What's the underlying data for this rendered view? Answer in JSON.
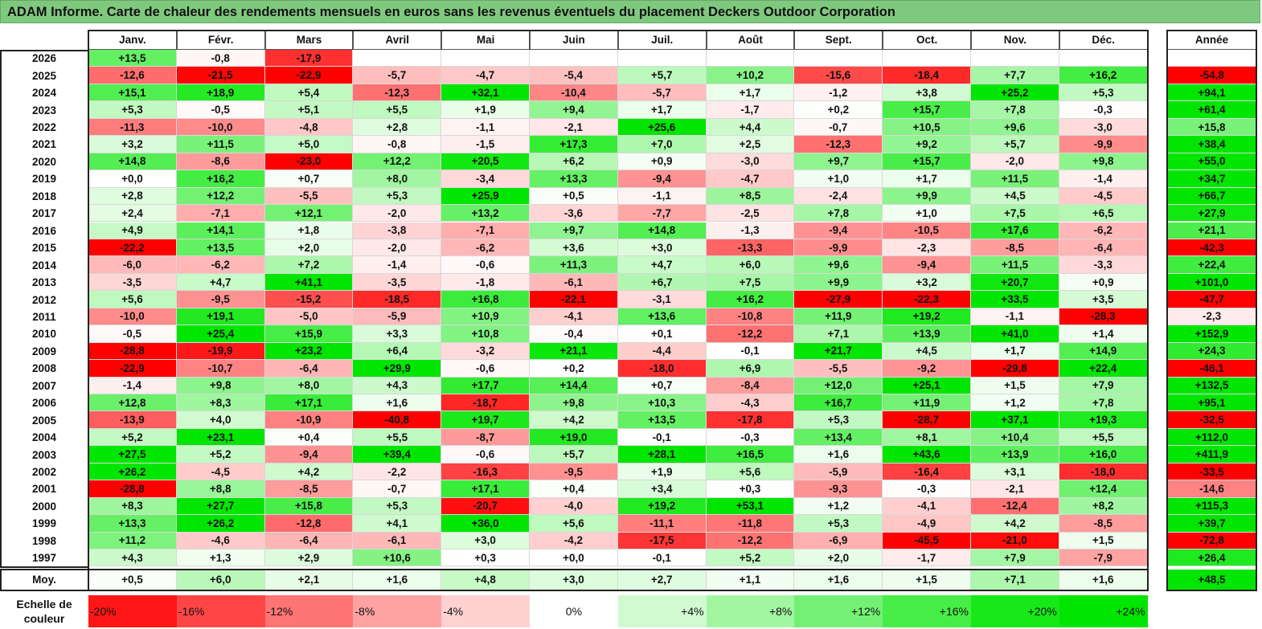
{
  "title": "ADAM Informe. Carte de chaleur des rendements mensuels en euros sans les revenus éventuels du placement Deckers Outdoor Corporation",
  "chart_data": {
    "type": "heatmap",
    "title": "ADAM Informe. Carte de chaleur des rendements mensuels en euros sans les revenus éventuels du placement Deckers Outdoor Corporation",
    "columns": [
      "Janv.",
      "Févr.",
      "Mars",
      "Avril",
      "Mai",
      "Juin",
      "Juil.",
      "Août",
      "Sept.",
      "Oct.",
      "Nov.",
      "Déc."
    ],
    "year_column_label": "Année",
    "rows": [
      {
        "year": "2026",
        "values": [
          "+13,5",
          "-0,8",
          "-17,9",
          "",
          "",
          "",
          "",
          "",
          "",
          "",
          "",
          ""
        ],
        "annual": ""
      },
      {
        "year": "2025",
        "values": [
          "-12,6",
          "-21,5",
          "-22,9",
          "-5,7",
          "-4,7",
          "-5,4",
          "+5,7",
          "+10,2",
          "-15,6",
          "-18,4",
          "+7,7",
          "+16,2"
        ],
        "annual": "-54,8"
      },
      {
        "year": "2024",
        "values": [
          "+15,1",
          "+18,9",
          "+5,4",
          "-12,3",
          "+32,1",
          "-10,4",
          "-5,7",
          "+1,7",
          "-1,2",
          "+3,8",
          "+25,2",
          "+5,3"
        ],
        "annual": "+94,1"
      },
      {
        "year": "2023",
        "values": [
          "+5,3",
          "-0,5",
          "+5,1",
          "+5,5",
          "+1,9",
          "+9,4",
          "+1,7",
          "-1,7",
          "+0,2",
          "+15,7",
          "+7,8",
          "-0,3"
        ],
        "annual": "+61,4"
      },
      {
        "year": "2022",
        "values": [
          "-11,3",
          "-10,0",
          "-4,8",
          "+2,8",
          "-1,1",
          "-2,1",
          "+25,6",
          "+4,4",
          "-0,7",
          "+10,5",
          "+9,6",
          "-3,0"
        ],
        "annual": "+15,8"
      },
      {
        "year": "2021",
        "values": [
          "+3,2",
          "+11,5",
          "+5,0",
          "-0,8",
          "-1,5",
          "+17,3",
          "+7,0",
          "+2,5",
          "-12,3",
          "+9,2",
          "+5,7",
          "-9,9"
        ],
        "annual": "+38,4"
      },
      {
        "year": "2020",
        "values": [
          "+14,8",
          "-8,6",
          "-23,0",
          "+12,2",
          "+20,5",
          "+6,2",
          "+0,9",
          "-3,0",
          "+9,7",
          "+15,7",
          "-2,0",
          "+9,8"
        ],
        "annual": "+55,0"
      },
      {
        "year": "2019",
        "values": [
          "+0,0",
          "+16,2",
          "+0,7",
          "+8,0",
          "-3,4",
          "+13,3",
          "-9,4",
          "-4,7",
          "+1,0",
          "+1,7",
          "+11,5",
          "-1,4"
        ],
        "annual": "+34,7"
      },
      {
        "year": "2018",
        "values": [
          "+2,8",
          "+12,2",
          "-5,5",
          "+5,3",
          "+25,9",
          "+0,5",
          "-1,1",
          "+8,5",
          "-2,4",
          "+9,9",
          "+4,5",
          "-4,5"
        ],
        "annual": "+66,7"
      },
      {
        "year": "2017",
        "values": [
          "+2,4",
          "-7,1",
          "+12,1",
          "-2,0",
          "+13,2",
          "-3,6",
          "-7,7",
          "-2,5",
          "+7,8",
          "+1,0",
          "+7,5",
          "+6,5"
        ],
        "annual": "+27,9"
      },
      {
        "year": "2016",
        "values": [
          "+4,9",
          "+14,1",
          "+1,8",
          "-3,8",
          "-7,1",
          "+9,7",
          "+14,8",
          "-1,3",
          "-9,4",
          "-10,5",
          "+17,6",
          "-6,2"
        ],
        "annual": "+21,1"
      },
      {
        "year": "2015",
        "values": [
          "-22,2",
          "+13,5",
          "+2,0",
          "-2,0",
          "-6,2",
          "+3,6",
          "+3,0",
          "-13,3",
          "-9,9",
          "-2,3",
          "-8,5",
          "-6,4"
        ],
        "annual": "-42,3"
      },
      {
        "year": "2014",
        "values": [
          "-6,0",
          "-6,2",
          "+7,2",
          "-1,4",
          "-0,6",
          "+11,3",
          "+4,7",
          "+6,0",
          "+9,6",
          "-9,4",
          "+11,5",
          "-3,3"
        ],
        "annual": "+22,4"
      },
      {
        "year": "2013",
        "values": [
          "-3,5",
          "+4,7",
          "+41,1",
          "-3,5",
          "-1,8",
          "-6,1",
          "+6,7",
          "+7,5",
          "+9,9",
          "+3,2",
          "+20,7",
          "+0,9"
        ],
        "annual": "+101,0"
      },
      {
        "year": "2012",
        "values": [
          "+5,6",
          "-9,5",
          "-15,2",
          "-18,5",
          "+16,8",
          "-22,1",
          "-3,1",
          "+16,2",
          "-27,9",
          "-22,3",
          "+33,5",
          "+3,5"
        ],
        "annual": "-47,7"
      },
      {
        "year": "2011",
        "values": [
          "-10,0",
          "+19,1",
          "-5,0",
          "-5,9",
          "+10,9",
          "-4,1",
          "+13,6",
          "-10,8",
          "+11,9",
          "+19,2",
          "-1,1",
          "-28,3"
        ],
        "annual": "-2,3"
      },
      {
        "year": "2010",
        "values": [
          "-0,5",
          "+25,4",
          "+15,9",
          "+3,3",
          "+10,8",
          "-0,4",
          "+0,1",
          "-12,2",
          "+7,1",
          "+13,9",
          "+41,0",
          "+1,4"
        ],
        "annual": "+152,9"
      },
      {
        "year": "2009",
        "values": [
          "-28,8",
          "-19,9",
          "+23,2",
          "+6,4",
          "-3,2",
          "+21,1",
          "-4,4",
          "-0,1",
          "+21,7",
          "+4,5",
          "+1,7",
          "+14,9"
        ],
        "annual": "+24,3"
      },
      {
        "year": "2008",
        "values": [
          "-22,9",
          "-10,7",
          "-6,4",
          "+29,9",
          "-0,6",
          "+0,2",
          "-18,0",
          "+6,9",
          "-5,5",
          "-9,2",
          "-29,8",
          "+22,4"
        ],
        "annual": "-46,1"
      },
      {
        "year": "2007",
        "values": [
          "-1,4",
          "+9,8",
          "+8,0",
          "+4,3",
          "+17,7",
          "+14,4",
          "+0,7",
          "-8,4",
          "+12,0",
          "+25,1",
          "+1,5",
          "+7,9"
        ],
        "annual": "+132,5"
      },
      {
        "year": "2006",
        "values": [
          "+12,8",
          "+8,3",
          "+17,1",
          "+1,6",
          "-18,7",
          "+9,8",
          "+10,3",
          "-4,3",
          "+16,7",
          "+11,9",
          "+1,2",
          "+7,8"
        ],
        "annual": "+95,1"
      },
      {
        "year": "2005",
        "values": [
          "-13,9",
          "+4,0",
          "-10,9",
          "-40,8",
          "+19,7",
          "+4,2",
          "+13,5",
          "-17,8",
          "+5,3",
          "-28,7",
          "+37,1",
          "+19,3"
        ],
        "annual": "-32,5"
      },
      {
        "year": "2004",
        "values": [
          "+5,2",
          "+23,1",
          "+0,4",
          "+5,5",
          "-8,7",
          "+19,0",
          "-0,1",
          "-0,3",
          "+13,4",
          "+8,1",
          "+10,4",
          "+5,5"
        ],
        "annual": "+112,0"
      },
      {
        "year": "2003",
        "values": [
          "+27,5",
          "+5,2",
          "-9,4",
          "+39,4",
          "-0,6",
          "+5,7",
          "+28,1",
          "+16,5",
          "+1,6",
          "+43,6",
          "+13,9",
          "+16,0"
        ],
        "annual": "+411,9"
      },
      {
        "year": "2002",
        "values": [
          "+26,2",
          "-4,5",
          "+4,2",
          "-2,2",
          "-16,3",
          "-9,5",
          "+1,9",
          "+5,6",
          "-5,9",
          "-16,4",
          "+3,1",
          "-18,0"
        ],
        "annual": "-33,5"
      },
      {
        "year": "2001",
        "values": [
          "-28,8",
          "+8,8",
          "-8,5",
          "-0,7",
          "+17,1",
          "+0,4",
          "+3,4",
          "+0,3",
          "-9,3",
          "-0,3",
          "-2,1",
          "+12,4"
        ],
        "annual": "-14,6"
      },
      {
        "year": "2000",
        "values": [
          "+8,3",
          "+27,7",
          "+15,8",
          "+5,3",
          "-20,7",
          "-4,0",
          "+19,2",
          "+53,1",
          "+1,2",
          "-4,1",
          "-12,4",
          "+8,2"
        ],
        "annual": "+115,3"
      },
      {
        "year": "1999",
        "values": [
          "+13,3",
          "+26,2",
          "-12,8",
          "+4,1",
          "+36,0",
          "+5,6",
          "-11,1",
          "-11,8",
          "+5,3",
          "-4,9",
          "+4,2",
          "-8,5"
        ],
        "annual": "+39,7"
      },
      {
        "year": "1998",
        "values": [
          "+11,2",
          "-4,6",
          "-6,4",
          "-6,1",
          "+3,0",
          "-4,2",
          "-17,5",
          "-12,2",
          "-6,9",
          "-45,5",
          "-21,0",
          "+1,5"
        ],
        "annual": "-72,8"
      },
      {
        "year": "1997",
        "values": [
          "+4,3",
          "+1,3",
          "+2,9",
          "+10,6",
          "+0,3",
          "+0,0",
          "-0,1",
          "+5,2",
          "+2,0",
          "-1,7",
          "+7,9",
          "-7,9"
        ],
        "annual": "+26,4"
      }
    ],
    "average": {
      "label": "Moy.",
      "values": [
        "+0,5",
        "+6,0",
        "+2,1",
        "+1,6",
        "+4,8",
        "+3,0",
        "+2,7",
        "+1,1",
        "+1,6",
        "+1,5",
        "+7,1",
        "+1,6"
      ],
      "annual": "+48,5"
    },
    "scale": {
      "label_line1": "Echelle de",
      "label_line2": "couleur",
      "steps": [
        "-20%",
        "-16%",
        "-12%",
        "-8%",
        "-4%",
        "0%",
        "+4%",
        "+8%",
        "+12%",
        "+16%",
        "+20%",
        "+24%"
      ]
    }
  },
  "colors": {
    "title_bg": "#7fc97f",
    "neg_max": "#ff0000",
    "pos_max": "#00e000",
    "neutral": "#ffffff"
  }
}
